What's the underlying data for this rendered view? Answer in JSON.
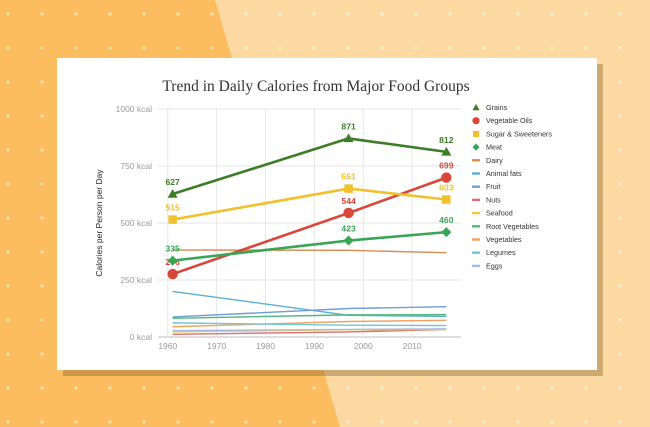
{
  "colors": {
    "background_orange": "#fbbd5f",
    "background_light": "#fdd9a2",
    "card": "#ffffff",
    "grid": "#e6e6e6"
  },
  "chart_data": {
    "type": "line",
    "title": "Trend in Daily Calories from Major Food Groups",
    "ylabel": "Calories per Person per Day",
    "xlabel": "",
    "xlim": [
      1958,
      2020
    ],
    "ylim": [
      0,
      1000
    ],
    "x_ticks": [
      "1960",
      "1970",
      "1980",
      "1990",
      "2000",
      "2010"
    ],
    "x_tick_values": [
      1960,
      1970,
      1980,
      1990,
      2000,
      2010
    ],
    "y_ticks": [
      "0 kcal",
      "250 kcal",
      "500 kcal",
      "750 kcal",
      "1000 kcal"
    ],
    "y_tick_values": [
      0,
      250,
      500,
      750,
      1000
    ],
    "grid": true,
    "legend_position": "right",
    "series": [
      {
        "name": "Grains",
        "color": "#3d7d27",
        "marker": "triangle",
        "x": [
          1961,
          1997,
          2017
        ],
        "y": [
          627,
          871,
          812
        ],
        "labels": [
          "627",
          "871",
          "812"
        ]
      },
      {
        "name": "Vegetable Oils",
        "color": "#d8473a",
        "marker": "circle",
        "x": [
          1961,
          1997,
          2017
        ],
        "y": [
          276,
          544,
          699
        ],
        "labels": [
          "276",
          "544",
          "699"
        ]
      },
      {
        "name": "Sugar & Sweeteners",
        "color": "#f0c12d",
        "marker": "square",
        "x": [
          1961,
          1997,
          2017
        ],
        "y": [
          515,
          651,
          603
        ],
        "labels": [
          "515",
          "651",
          "603"
        ]
      },
      {
        "name": "Meat",
        "color": "#3aa556",
        "marker": "diamond",
        "x": [
          1961,
          1997,
          2017
        ],
        "y": [
          335,
          423,
          460
        ],
        "labels": [
          "335",
          "423",
          "460"
        ]
      },
      {
        "name": "Dairy",
        "color": "#d98c4f",
        "marker": "none",
        "x": [
          1961,
          1997,
          2017
        ],
        "y": [
          382,
          380,
          370
        ],
        "labels": []
      },
      {
        "name": "Animal fats",
        "color": "#5aaed6",
        "marker": "none",
        "x": [
          1961,
          1997,
          2017
        ],
        "y": [
          200,
          95,
          90
        ],
        "labels": []
      },
      {
        "name": "Fruit",
        "color": "#6f9fd6",
        "marker": "none",
        "x": [
          1961,
          1997,
          2017
        ],
        "y": [
          88,
          125,
          133
        ],
        "labels": []
      },
      {
        "name": "Nuts",
        "color": "#d96f6f",
        "marker": "none",
        "x": [
          1961,
          1997,
          2017
        ],
        "y": [
          12,
          22,
          33
        ],
        "labels": []
      },
      {
        "name": "Seafood",
        "color": "#ecc94b",
        "marker": "none",
        "x": [
          1961,
          1997,
          2017
        ],
        "y": [
          22,
          32,
          33
        ],
        "labels": []
      },
      {
        "name": "Root Vegetables",
        "color": "#4db879",
        "marker": "none",
        "x": [
          1961,
          1997,
          2017
        ],
        "y": [
          82,
          97,
          98
        ],
        "labels": []
      },
      {
        "name": "Vegetables",
        "color": "#f2a15f",
        "marker": "none",
        "x": [
          1961,
          1997,
          2017
        ],
        "y": [
          45,
          68,
          73
        ],
        "labels": []
      },
      {
        "name": "Legumes",
        "color": "#6fc6d4",
        "marker": "none",
        "x": [
          1961,
          1997,
          2017
        ],
        "y": [
          62,
          52,
          50
        ],
        "labels": []
      },
      {
        "name": "Eggs",
        "color": "#a7bbe0",
        "marker": "none",
        "x": [
          1961,
          1997,
          2017
        ],
        "y": [
          28,
          33,
          36
        ],
        "labels": []
      }
    ]
  }
}
